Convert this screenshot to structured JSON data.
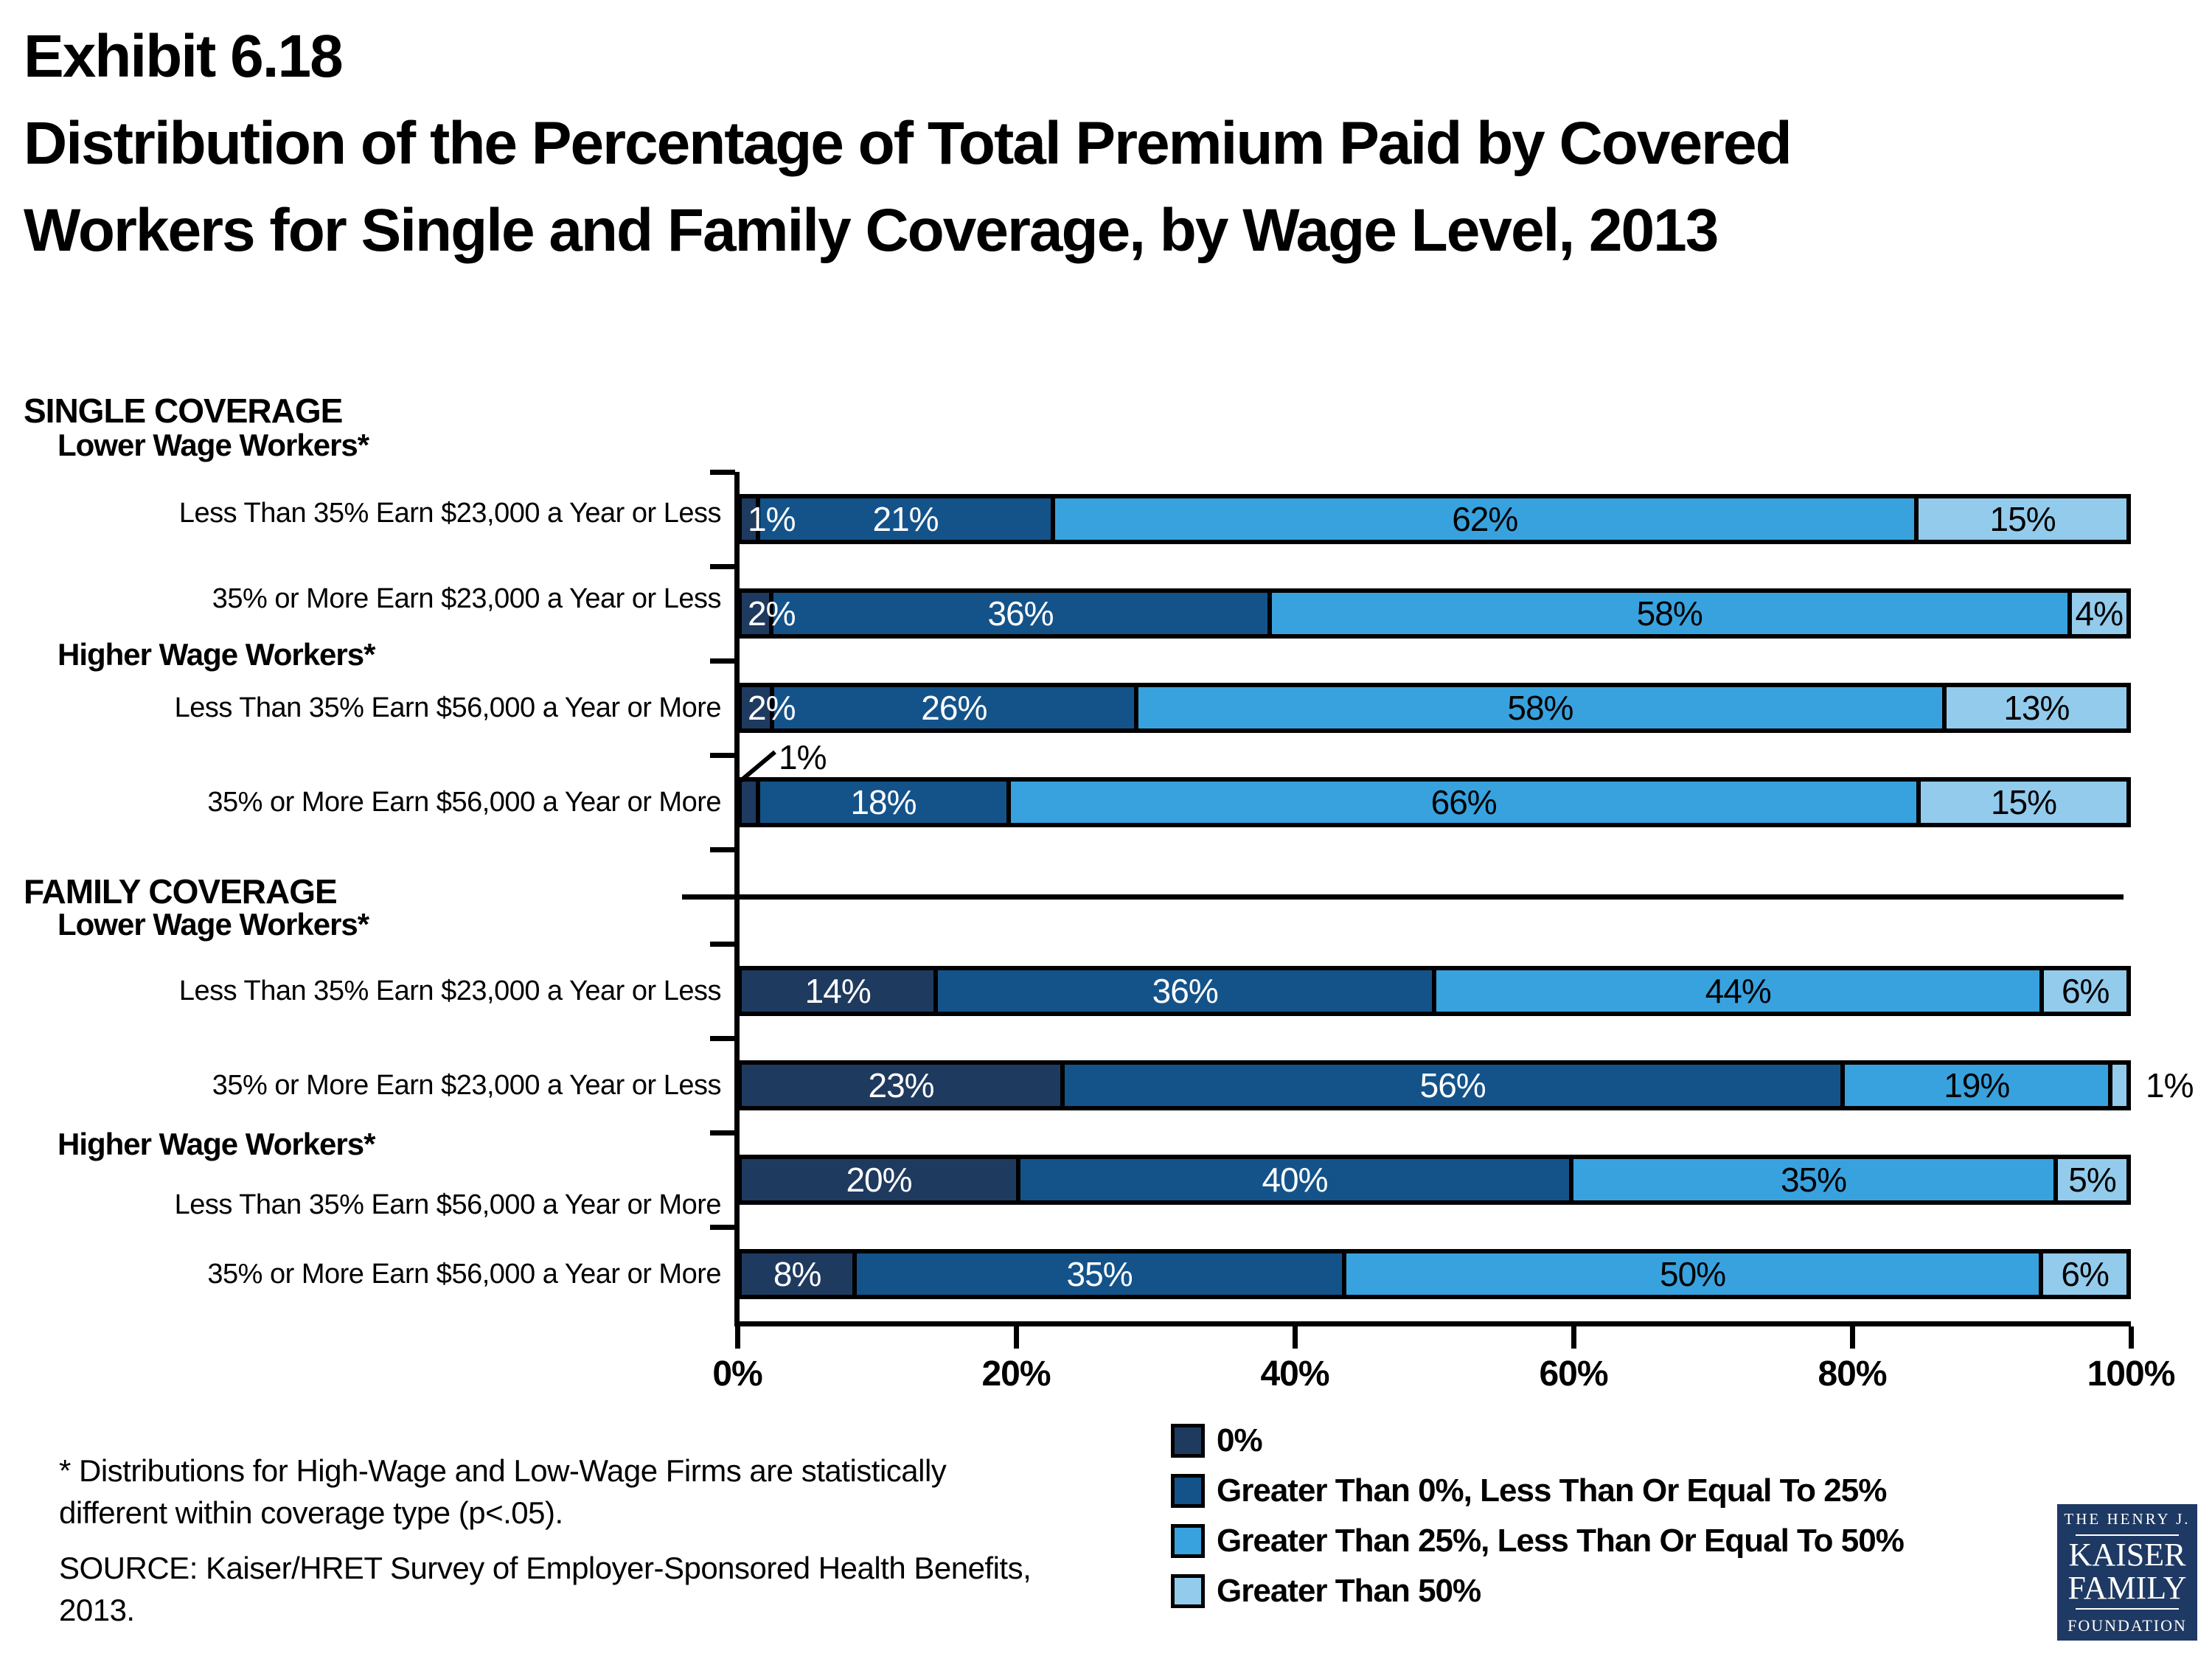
{
  "title": {
    "exhibit": "Exhibit 6.18",
    "line2": "Distribution of the Percentage of Total Premium Paid by Covered",
    "line3": "Workers for Single and Family Coverage, by Wage Level, 2013"
  },
  "colors": {
    "segment_0": "#1F3A5F",
    "segment_1": "#14538A",
    "segment_2": "#38A2DE",
    "segment_3": "#93CBEC",
    "bar_border": "#000000",
    "logo_bg": "#1E3963"
  },
  "sections": {
    "single": {
      "header": "SINGLE COVERAGE",
      "lower": "Lower Wage Workers*",
      "higher": "Higher Wage Workers*"
    },
    "family": {
      "header": "FAMILY COVERAGE",
      "lower": "Lower Wage Workers*",
      "higher": "Higher Wage Workers*"
    }
  },
  "axis": {
    "ticks": [
      "0%",
      "20%",
      "40%",
      "60%",
      "80%",
      "100%"
    ]
  },
  "legend": {
    "items": [
      {
        "label": "0%",
        "color": "#1F3A5F"
      },
      {
        "label": "Greater Than 0%, Less Than Or Equal To 25%",
        "color": "#14538A"
      },
      {
        "label": "Greater Than 25%, Less Than Or Equal To 50%",
        "color": "#38A2DE"
      },
      {
        "label": "Greater Than 50%",
        "color": "#93CBEC"
      }
    ]
  },
  "footnote": {
    "line1": "* Distributions for High-Wage and Low-Wage Firms are statistically",
    "line2": "different within coverage type (p<.05)."
  },
  "source": {
    "line1": "SOURCE:  Kaiser/HRET Survey of Employer-Sponsored Health Benefits,",
    "line2": "2013."
  },
  "logo": {
    "line1": "THE HENRY J.",
    "line2": "KAISER",
    "line3": "FAMILY",
    "line4": "FOUNDATION"
  },
  "chart_data": {
    "type": "bar",
    "orientation": "horizontal",
    "stacked": true,
    "title": "Distribution of the Percentage of Total Premium Paid by Covered Workers for Single and Family Coverage, by Wage Level, 2013",
    "xlim": [
      0,
      100
    ],
    "x_tick_labels": [
      "0%",
      "20%",
      "40%",
      "60%",
      "80%",
      "100%"
    ],
    "legend_position": "bottom",
    "series_names": [
      "0%",
      "Greater Than 0%, Less Than Or Equal To 25%",
      "Greater Than 25%, Less Than Or Equal To 50%",
      "Greater Than 50%"
    ],
    "series_colors": [
      "#1F3A5F",
      "#14538A",
      "#38A2DE",
      "#93CBEC"
    ],
    "rows": [
      {
        "section": "SINGLE COVERAGE",
        "group": "Lower Wage Workers*",
        "category": "Less Than 35% Earn $23,000 a Year or Less",
        "values": [
          1,
          21,
          62,
          15
        ],
        "labels": [
          "1%",
          "21%",
          "62%",
          "15%"
        ],
        "label_modes": [
          "start",
          "in",
          "in",
          "in"
        ]
      },
      {
        "section": "SINGLE COVERAGE",
        "group": "Lower Wage Workers*",
        "category": "35% or More Earn $23,000 a Year or Less",
        "values": [
          2,
          36,
          58,
          4
        ],
        "labels": [
          "2%",
          "36%",
          "58%",
          "4%"
        ],
        "label_modes": [
          "start",
          "in",
          "in",
          "in"
        ]
      },
      {
        "section": "SINGLE COVERAGE",
        "group": "Higher Wage Workers*",
        "category": "Less Than 35% Earn $56,000 a Year or More",
        "values": [
          2,
          26,
          58,
          13
        ],
        "labels": [
          "2%",
          "26%",
          "58%",
          "13%"
        ],
        "label_modes": [
          "start",
          "in",
          "in",
          "in"
        ]
      },
      {
        "section": "SINGLE COVERAGE",
        "group": "Higher Wage Workers*",
        "category": "35% or More Earn $56,000 a Year or More",
        "values": [
          1,
          18,
          66,
          15
        ],
        "labels": [
          "1%",
          "18%",
          "66%",
          "15%"
        ],
        "label_modes": [
          "callout",
          "in",
          "in",
          "in"
        ]
      },
      {
        "section": "FAMILY COVERAGE",
        "group": "Lower Wage Workers*",
        "category": "Less Than 35% Earn $23,000 a Year or Less",
        "values": [
          14,
          36,
          44,
          6
        ],
        "labels": [
          "14%",
          "36%",
          "44%",
          "6%"
        ],
        "label_modes": [
          "in",
          "in",
          "in",
          "in"
        ]
      },
      {
        "section": "FAMILY COVERAGE",
        "group": "Lower Wage Workers*",
        "category": "35% or More Earn $23,000 a Year or Less",
        "values": [
          23,
          56,
          19,
          1
        ],
        "labels": [
          "23%",
          "56%",
          "19%",
          "1%"
        ],
        "label_modes": [
          "in",
          "in",
          "in",
          "outside"
        ]
      },
      {
        "section": "FAMILY COVERAGE",
        "group": "Higher Wage Workers*",
        "category": "Less Than 35% Earn $56,000 a Year or More",
        "values": [
          20,
          40,
          35,
          5
        ],
        "labels": [
          "20%",
          "40%",
          "35%",
          "5%"
        ],
        "label_modes": [
          "in",
          "in",
          "in",
          "in"
        ]
      },
      {
        "section": "FAMILY COVERAGE",
        "group": "Higher Wage Workers*",
        "category": "35% or More Earn $56,000 a Year or More",
        "values": [
          8,
          35,
          50,
          6
        ],
        "labels": [
          "8%",
          "35%",
          "50%",
          "6%"
        ],
        "label_modes": [
          "in",
          "in",
          "in",
          "in"
        ]
      }
    ]
  }
}
